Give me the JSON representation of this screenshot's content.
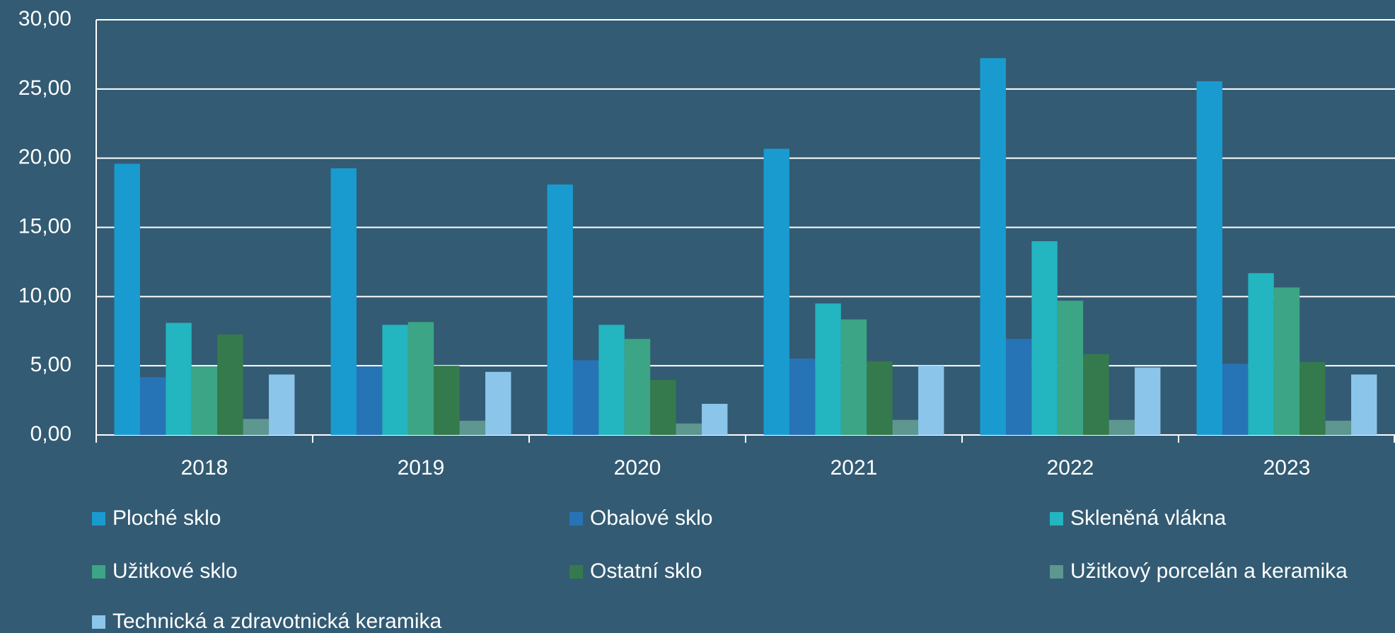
{
  "chart_data": {
    "type": "bar",
    "categories": [
      "2018",
      "2019",
      "2020",
      "2021",
      "2022",
      "2023"
    ],
    "series": [
      {
        "name": "Ploché sklo",
        "color": "#1a9bcf",
        "values": [
          19.6,
          19.27,
          18.1,
          20.68,
          27.23,
          25.56
        ]
      },
      {
        "name": "Obalové sklo",
        "color": "#2674b6",
        "values": [
          4.17,
          4.95,
          5.4,
          5.52,
          6.94,
          5.14
        ]
      },
      {
        "name": "Skleněná vlákna",
        "color": "#23b5c0",
        "values": [
          8.1,
          7.96,
          7.96,
          9.5,
          14.0,
          11.69
        ]
      },
      {
        "name": "Užitkové sklo",
        "color": "#3ba585",
        "values": [
          4.95,
          8.16,
          6.94,
          8.35,
          9.7,
          10.66
        ]
      },
      {
        "name": "Ostatní sklo",
        "color": "#357a4c",
        "values": [
          7.26,
          5.0,
          3.98,
          5.33,
          5.84,
          5.27
        ]
      },
      {
        "name": "Užitkový porcelán a keramika",
        "color": "#5e9690",
        "values": [
          1.16,
          1.03,
          0.83,
          1.09,
          1.09,
          1.03
        ]
      },
      {
        "name": "Technická a zdravotnická keramika",
        "color": "#8cc5ea",
        "values": [
          4.37,
          4.56,
          2.25,
          5.0,
          4.88,
          4.37
        ]
      }
    ],
    "ylim": [
      0,
      30
    ],
    "yticks": [
      {
        "value": 0,
        "label": "0,00"
      },
      {
        "value": 5,
        "label": "5,00"
      },
      {
        "value": 10,
        "label": "10,00"
      },
      {
        "value": 15,
        "label": "15,00"
      },
      {
        "value": 20,
        "label": "20,00"
      },
      {
        "value": 25,
        "label": "25,00"
      },
      {
        "value": 30,
        "label": "30,00"
      }
    ],
    "grid": true
  }
}
